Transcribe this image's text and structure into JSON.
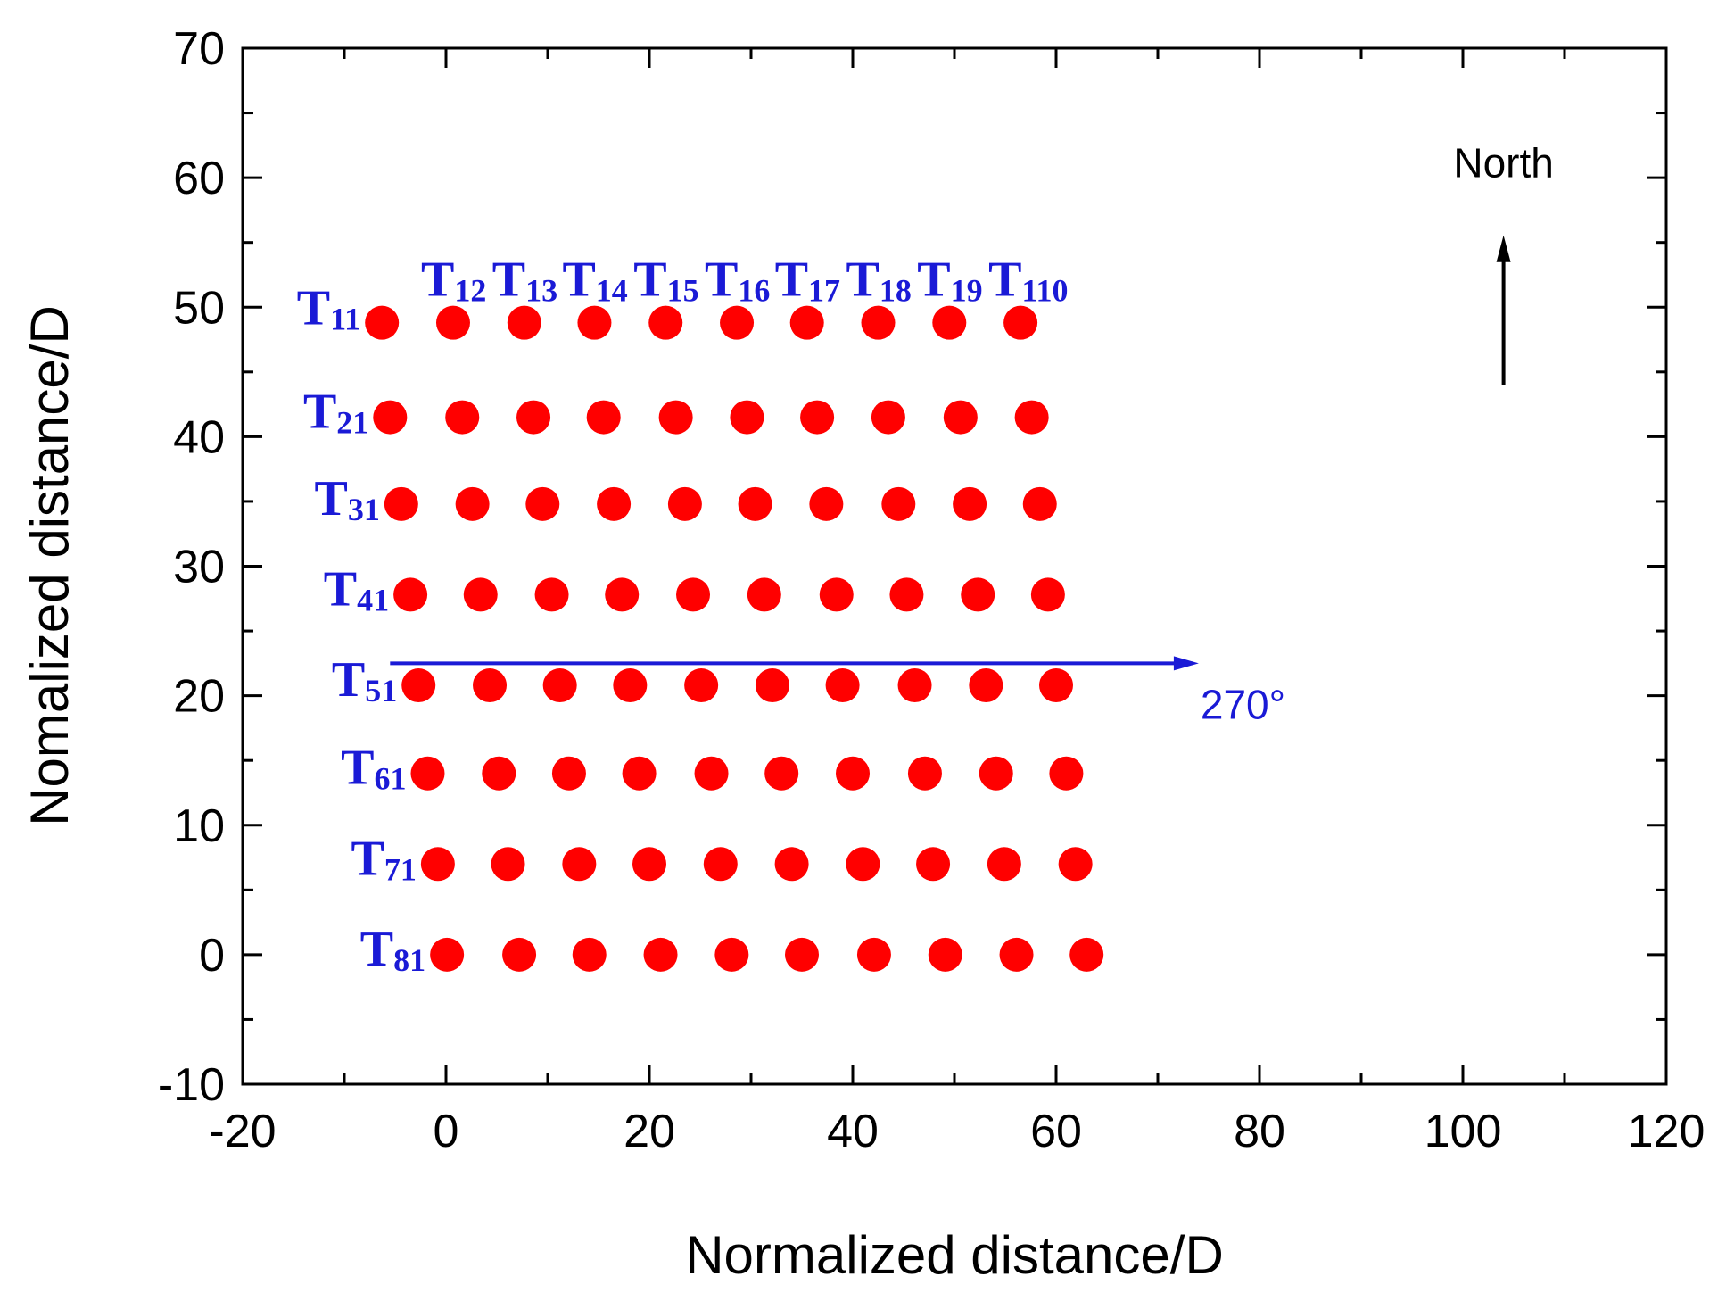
{
  "chart_data": {
    "type": "scatter",
    "title": "",
    "xlabel": "Normalized distance/D",
    "ylabel": "Nomalized distance/D",
    "xlim": [
      -20,
      120
    ],
    "ylim": [
      -10,
      70
    ],
    "xticks": [
      -20,
      0,
      20,
      40,
      60,
      80,
      100,
      120
    ],
    "yticks": [
      -10,
      0,
      10,
      20,
      30,
      40,
      50,
      60,
      70
    ],
    "x_tick_labels": [
      "-20",
      "0",
      "20",
      "40",
      "60",
      "80",
      "100",
      "120"
    ],
    "y_tick_labels": [
      "-10",
      "0",
      "10",
      "20",
      "30",
      "40",
      "50",
      "60",
      "70"
    ],
    "marker_color": "#ff0000",
    "label_color": "#1a1ad6",
    "series": [
      {
        "name": "T11",
        "y": 48.8,
        "x": [
          -6.3,
          0.7,
          7.7,
          14.6,
          21.6,
          28.6,
          35.5,
          42.5,
          49.5,
          56.5
        ]
      },
      {
        "name": "T21",
        "y": 41.5,
        "x": [
          -5.5,
          1.6,
          8.6,
          15.5,
          22.6,
          29.6,
          36.5,
          43.5,
          50.6,
          57.6
        ]
      },
      {
        "name": "T31",
        "y": 34.8,
        "x": [
          -4.4,
          2.6,
          9.5,
          16.5,
          23.5,
          30.4,
          37.4,
          44.5,
          51.5,
          58.4
        ]
      },
      {
        "name": "T41",
        "y": 27.8,
        "x": [
          -3.5,
          3.4,
          10.4,
          17.3,
          24.3,
          31.3,
          38.4,
          45.3,
          52.3,
          59.2
        ]
      },
      {
        "name": "T51",
        "y": 20.8,
        "x": [
          -2.7,
          4.3,
          11.2,
          18.1,
          25.1,
          32.1,
          39.0,
          46.1,
          53.1,
          60.0
        ]
      },
      {
        "name": "T61",
        "y": 14.0,
        "x": [
          -1.8,
          5.2,
          12.1,
          19.0,
          26.1,
          33.0,
          40.0,
          47.1,
          54.1,
          61.0
        ]
      },
      {
        "name": "T71",
        "y": 7.0,
        "x": [
          -0.8,
          6.1,
          13.1,
          20.0,
          27.0,
          34.0,
          41.0,
          47.9,
          54.9,
          61.9
        ]
      },
      {
        "name": "T81",
        "y": 0.0,
        "x": [
          0.1,
          7.2,
          14.1,
          21.1,
          28.1,
          35.0,
          42.1,
          49.1,
          56.1,
          63.0
        ]
      }
    ],
    "row_labels": [
      {
        "main": "T",
        "sub": "11"
      },
      {
        "main": "T",
        "sub": "21"
      },
      {
        "main": "T",
        "sub": "31"
      },
      {
        "main": "T",
        "sub": "41"
      },
      {
        "main": "T",
        "sub": "51"
      },
      {
        "main": "T",
        "sub": "61"
      },
      {
        "main": "T",
        "sub": "71"
      },
      {
        "main": "T",
        "sub": "81"
      }
    ],
    "column_labels": [
      {
        "main": "T",
        "sub": "12"
      },
      {
        "main": "T",
        "sub": "13"
      },
      {
        "main": "T",
        "sub": "14"
      },
      {
        "main": "T",
        "sub": "15"
      },
      {
        "main": "T",
        "sub": "16"
      },
      {
        "main": "T",
        "sub": "17"
      },
      {
        "main": "T",
        "sub": "18"
      },
      {
        "main": "T",
        "sub": "19"
      },
      {
        "main": "T",
        "sub": "110"
      }
    ],
    "wind_arrow": {
      "label": "270°",
      "x_from": -5.5,
      "x_to": 73.5,
      "y": 22.5,
      "color": "#1a1ad6"
    },
    "north_arrow": {
      "label": "North",
      "x": 104,
      "y_from": 44,
      "y_to": 55,
      "color": "#000000"
    }
  }
}
